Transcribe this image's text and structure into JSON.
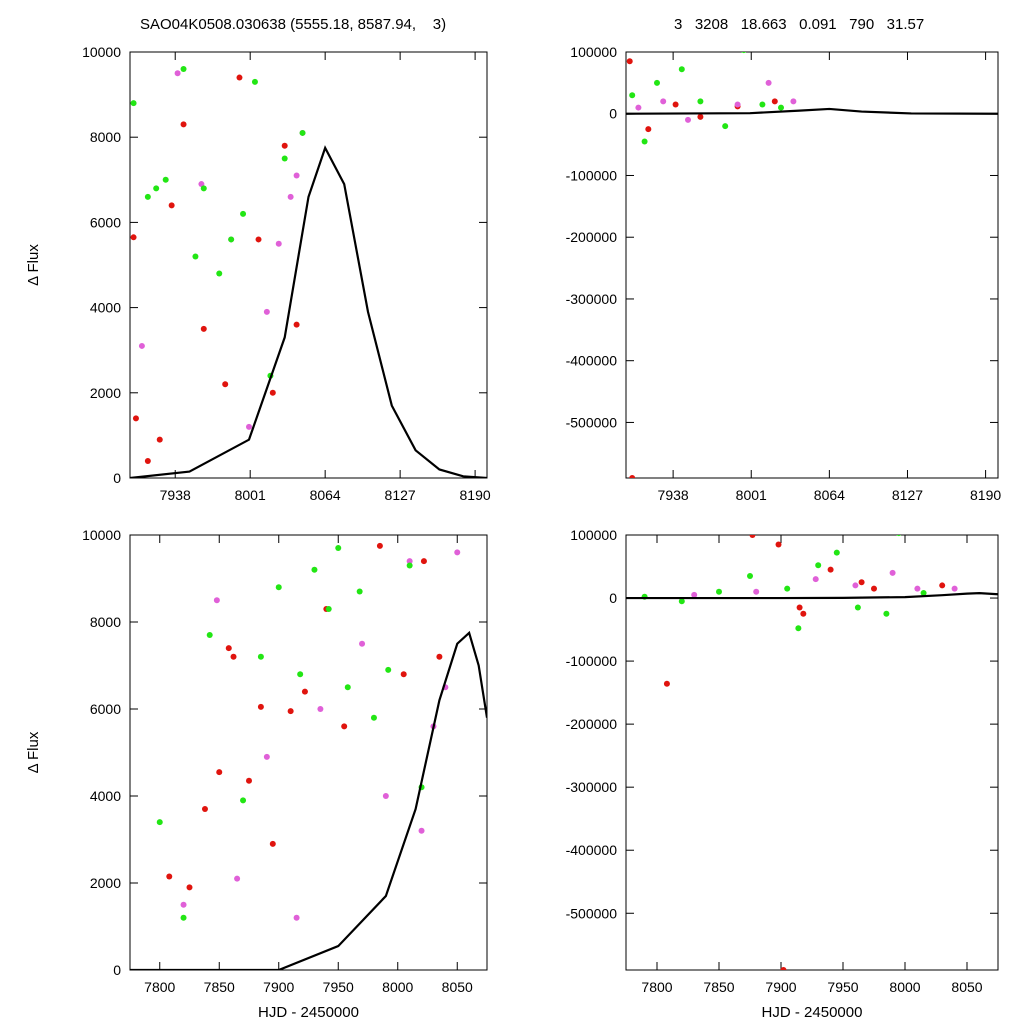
{
  "header": {
    "left": "SAO04K0508.030638 (5555.18, 8587.94,    3)",
    "right": "3   3208   18.663   0.091   790   31.57"
  },
  "colors": {
    "series_red": "#e0140e",
    "series_magenta": "#e060d8",
    "series_green": "#22e614",
    "model_curve": "#000000"
  },
  "chart_data": [
    {
      "id": "top-left",
      "type": "scatter",
      "ylabel": "Δ Flux",
      "xlabel": "",
      "xlim": [
        7900,
        8200
      ],
      "ylim": [
        0,
        10000
      ],
      "xticks": [
        7938,
        8001,
        8064,
        8127,
        8190
      ],
      "yticks": [
        0,
        2000,
        4000,
        6000,
        8000,
        10000
      ],
      "grid": false,
      "series": [
        {
          "key": "red",
          "x": [
            7903,
            7905,
            7915,
            7925,
            7935,
            7945,
            7962,
            7980,
            7992,
            8008,
            8020,
            8030,
            8040
          ],
          "y": [
            5650,
            1400,
            400,
            900,
            6400,
            8300,
            3500,
            2200,
            9400,
            5600,
            2000,
            7800,
            3600
          ]
        },
        {
          "key": "magenta",
          "x": [
            7910,
            7940,
            7960,
            7985,
            8000,
            8015,
            8025,
            8035,
            8040,
            8045
          ],
          "y": [
            3100,
            9500,
            6900,
            5600,
            1200,
            3900,
            5500,
            6600,
            7100,
            8100
          ]
        },
        {
          "key": "green",
          "x": [
            7903,
            7915,
            7922,
            7930,
            7945,
            7955,
            7962,
            7975,
            7985,
            7995,
            8005,
            8018,
            8030,
            8045
          ],
          "y": [
            8800,
            6600,
            6800,
            7000,
            9600,
            5200,
            6800,
            4800,
            5600,
            6200,
            9300,
            2400,
            7500,
            8100
          ]
        }
      ],
      "model": {
        "x": [
          7900,
          7950,
          8000,
          8030,
          8050,
          8064,
          8080,
          8100,
          8120,
          8140,
          8160,
          8180,
          8200
        ],
        "y": [
          0,
          150,
          900,
          3300,
          6600,
          7750,
          6900,
          3900,
          1700,
          650,
          200,
          40,
          0
        ]
      }
    },
    {
      "id": "top-right",
      "type": "scatter",
      "xlabel": "",
      "xlim": [
        7900,
        8200
      ],
      "ylim": [
        -590000,
        100000
      ],
      "xticks": [
        7938,
        8001,
        8064,
        8127,
        8190
      ],
      "yticks": [
        100000,
        0,
        -100000,
        -200000,
        -300000,
        -400000,
        -500000
      ],
      "grid": false,
      "series": [
        {
          "key": "red",
          "x": [
            7903,
            7905,
            7918,
            7940,
            7960,
            7990,
            8020
          ],
          "y": [
            85000,
            -590000,
            -25000,
            15000,
            -5000,
            12000,
            20000
          ]
        },
        {
          "key": "magenta",
          "x": [
            7910,
            7930,
            7950,
            7990,
            8015,
            8035
          ],
          "y": [
            10000,
            20000,
            -10000,
            15000,
            50000,
            20000
          ]
        },
        {
          "key": "green",
          "x": [
            7905,
            7915,
            7925,
            7945,
            7960,
            7980,
            7995,
            8010,
            8025
          ],
          "y": [
            30000,
            -45000,
            50000,
            72000,
            20000,
            -20000,
            103000,
            15000,
            10000
          ]
        }
      ],
      "model": {
        "x": [
          7900,
          8000,
          8040,
          8064,
          8090,
          8130,
          8200
        ],
        "y": [
          0,
          900,
          5000,
          7750,
          3500,
          500,
          0
        ]
      }
    },
    {
      "id": "bottom-left",
      "type": "scatter",
      "ylabel": "Δ Flux",
      "xlabel": "HJD - 2450000",
      "xlim": [
        7775,
        8075
      ],
      "ylim": [
        0,
        10000
      ],
      "xticks": [
        7800,
        7850,
        7900,
        7950,
        8000,
        8050
      ],
      "yticks": [
        0,
        2000,
        4000,
        6000,
        8000,
        10000
      ],
      "grid": false,
      "series": [
        {
          "key": "red",
          "x": [
            7808,
            7825,
            7838,
            7850,
            7858,
            7862,
            7875,
            7885,
            7895,
            7910,
            7922,
            7940,
            7955,
            7985,
            8005,
            8022,
            8035
          ],
          "y": [
            2150,
            1900,
            3700,
            4550,
            7400,
            7200,
            4350,
            6050,
            2900,
            5950,
            6400,
            8300,
            5600,
            9750,
            6800,
            9400,
            7200
          ]
        },
        {
          "key": "magenta",
          "x": [
            7820,
            7848,
            7865,
            7890,
            7915,
            7935,
            7970,
            7990,
            8010,
            8020,
            8030,
            8040,
            8050
          ],
          "y": [
            1500,
            8500,
            2100,
            4900,
            1200,
            6000,
            7500,
            4000,
            9400,
            3200,
            5600,
            6500,
            9600
          ]
        },
        {
          "key": "green",
          "x": [
            7800,
            7820,
            7842,
            7870,
            7885,
            7900,
            7918,
            7930,
            7942,
            7950,
            7958,
            7968,
            7980,
            7992,
            8010,
            8020
          ],
          "y": [
            3400,
            1200,
            7700,
            3900,
            7200,
            8800,
            6800,
            9200,
            8300,
            9700,
            6500,
            8700,
            5800,
            6900,
            9300,
            4200
          ]
        }
      ],
      "model": {
        "x": [
          7775,
          7900,
          7950,
          7990,
          8015,
          8035,
          8050,
          8060,
          8068,
          8075
        ],
        "y": [
          0,
          0,
          550,
          1700,
          3700,
          6200,
          7500,
          7750,
          7000,
          5800
        ]
      }
    },
    {
      "id": "bottom-right",
      "type": "scatter",
      "xlabel": "HJD - 2450000",
      "xlim": [
        7775,
        8075
      ],
      "ylim": [
        -590000,
        100000
      ],
      "xticks": [
        7800,
        7850,
        7900,
        7950,
        8000,
        8050
      ],
      "yticks": [
        100000,
        0,
        -100000,
        -200000,
        -300000,
        -400000,
        -500000
      ],
      "grid": false,
      "series": [
        {
          "key": "red",
          "x": [
            7808,
            7877,
            7898,
            7902,
            7915,
            7918,
            7940,
            7965,
            7975,
            8030
          ],
          "y": [
            -136000,
            100000,
            85000,
            -590000,
            -15000,
            -25000,
            45000,
            25000,
            15000,
            20000
          ]
        },
        {
          "key": "magenta",
          "x": [
            7830,
            7880,
            7928,
            7960,
            7990,
            8010,
            8040
          ],
          "y": [
            5000,
            10000,
            30000,
            20000,
            40000,
            15000,
            15000
          ]
        },
        {
          "key": "green",
          "x": [
            7790,
            7820,
            7850,
            7875,
            7905,
            7914,
            7930,
            7945,
            7962,
            7985,
            7995,
            8015
          ],
          "y": [
            2000,
            -5000,
            10000,
            35000,
            15000,
            -48000,
            52000,
            72000,
            -15000,
            -25000,
            103000,
            8000
          ]
        }
      ],
      "model": {
        "x": [
          7775,
          7900,
          7950,
          8000,
          8030,
          8050,
          8060,
          8075
        ],
        "y": [
          0,
          0,
          300,
          1500,
          4500,
          7000,
          7750,
          6000
        ]
      }
    }
  ]
}
